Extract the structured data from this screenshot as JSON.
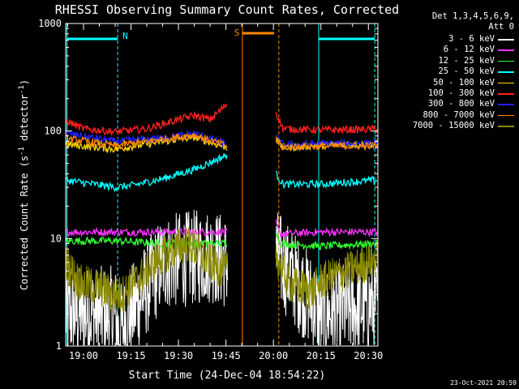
{
  "chart_data": {
    "type": "line",
    "title": "RHESSI Observing Summary Count Rates, Corrected",
    "xlabel": "Start Time (24-Dec-04 18:54:22)",
    "ylabel": "Corrected Count Rate (s⁻¹ detector⁻¹)",
    "ylabel_parts": {
      "main": "Corrected Count Rate (s",
      "sup1": "-1",
      "mid": " detector",
      "sup2": "-1",
      "end": ")"
    },
    "x_tick_labels": [
      "19:00",
      "19:15",
      "19:30",
      "19:45",
      "20:00",
      "20:15",
      "20:30"
    ],
    "x_tick_minutes": [
      0,
      15,
      30,
      45,
      60,
      75,
      90
    ],
    "xlim_minutes_after_19_00": [
      -5.63,
      93.0
    ],
    "y_scale": "log",
    "ylim": [
      1,
      1000
    ],
    "y_tick_labels": [
      "1",
      "10",
      "100",
      "1000"
    ],
    "y_tick_values": [
      1,
      10,
      100,
      1000
    ],
    "legend_header": [
      "Det 1,3,4,5,6,9,",
      "Att 0"
    ],
    "legend_placement": "right of plot",
    "series": [
      {
        "name": "3 - 6 keV",
        "color": "#ffffff",
        "x": [
          -5.6,
          10,
          11,
          25,
          40,
          45.5,
          60.8,
          75,
          93
        ],
        "y": [
          2,
          2,
          1.3,
          6,
          7,
          6,
          7,
          2,
          2.5
        ]
      },
      {
        "name": "6 - 12 keV",
        "color": "#ff33ff",
        "x": [
          -5.6,
          10,
          25,
          40,
          45.5,
          60.8,
          62,
          75,
          93
        ],
        "y": [
          11.5,
          11.5,
          11.5,
          11.5,
          11.5,
          14,
          11,
          11.5,
          11.5
        ]
      },
      {
        "name": "12 - 25 keV",
        "color": "#33ff33",
        "x": [
          -5.6,
          10,
          25,
          40,
          45.5,
          60.8,
          62,
          75,
          93
        ],
        "y": [
          9.5,
          9.5,
          9,
          9,
          9,
          12,
          9,
          8.5,
          9
        ]
      },
      {
        "name": "25 - 50 keV",
        "color": "#00ffff",
        "x": [
          -5.6,
          0,
          10,
          15,
          25,
          35,
          45.5,
          60.8,
          63,
          75,
          93
        ],
        "y": [
          35,
          33,
          30,
          31,
          36,
          44,
          60,
          40,
          32,
          32,
          35
        ]
      },
      {
        "name": "50 - 100 keV",
        "color": "#ffd700",
        "x": [
          -5.6,
          10,
          25,
          35,
          45.5,
          60.8,
          63,
          75,
          93
        ],
        "y": [
          75,
          68,
          80,
          88,
          70,
          85,
          70,
          74,
          76
        ]
      },
      {
        "name": "100 - 300 keV",
        "color": "#ff2020",
        "x": [
          -5.6,
          0,
          10,
          20,
          30,
          35,
          40,
          45.5,
          60.8,
          63,
          75,
          93
        ],
        "y": [
          125,
          105,
          98,
          105,
          128,
          140,
          128,
          180,
          150,
          105,
          102,
          104
        ]
      },
      {
        "name": "300 - 800 keV",
        "color": "#2020ff",
        "x": [
          -5.6,
          10,
          25,
          35,
          45.5,
          60.8,
          63,
          75,
          93
        ],
        "y": [
          95,
          80,
          86,
          95,
          75,
          88,
          74,
          76,
          77
        ]
      },
      {
        "name": "800 - 7000 keV",
        "color": "#ff8800",
        "x": [
          -5.6,
          10,
          25,
          35,
          45.5,
          60.8,
          63,
          75,
          93
        ],
        "y": [
          85,
          73,
          84,
          92,
          72,
          84,
          71,
          72,
          73
        ]
      },
      {
        "name": "7000 - 15000 keV",
        "color": "#8b8b00",
        "x": [
          -5.6,
          -1,
          5,
          10,
          12,
          25,
          33,
          40,
          45.5,
          60.8,
          65,
          72,
          75,
          93
        ],
        "y": [
          6,
          3.8,
          3.5,
          3,
          3,
          7,
          9,
          6,
          5,
          7,
          3.8,
          3.2,
          4,
          6.5
        ]
      }
    ],
    "annotations": [
      {
        "text": "N",
        "color": "#00ffff"
      },
      {
        "text": "S",
        "color": "#ff8800"
      }
    ],
    "night_intervals_minutes": [
      [
        -5.2,
        10.8
      ],
      [
        74.3,
        92.0
      ]
    ],
    "saa_interval_minutes": [
      50.2,
      61.7
    ],
    "timestamp": "23-Oct-2021 20:59"
  }
}
